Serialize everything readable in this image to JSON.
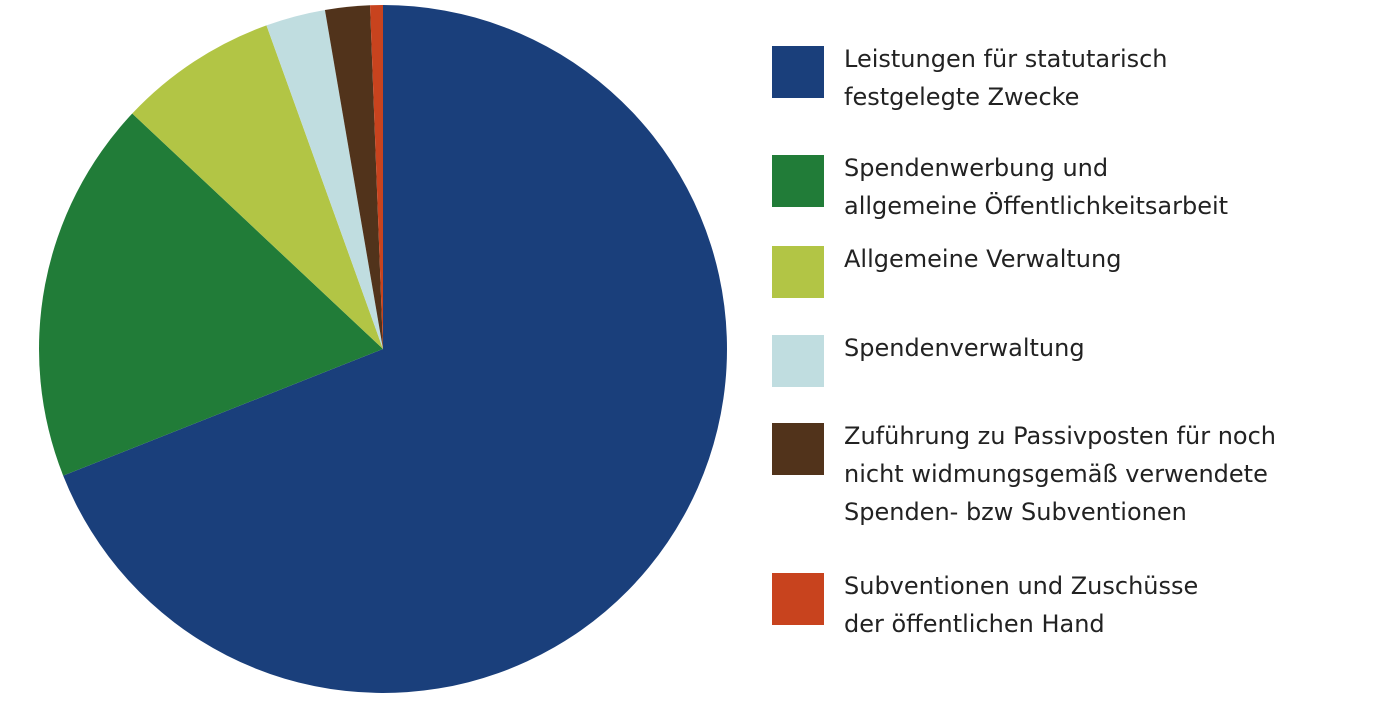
{
  "chart_data": {
    "type": "pie",
    "title": "",
    "start_angle": "12 o'clock",
    "direction": "clockwise",
    "legend_position": "right",
    "slices": [
      {
        "label": "Leistungen für statutarisch\nfestgelegte Zwecke",
        "value": 69.0,
        "color": "#1a3f7b"
      },
      {
        "label": "Spendenwerbung und\nallgemeine Öffentlichkeitsarbeit",
        "value": 18.0,
        "color": "#217c38"
      },
      {
        "label": "Allgemeine Verwaltung",
        "value": 7.5,
        "color": "#b2c545"
      },
      {
        "label": "Spendenverwaltung",
        "value": 2.8,
        "color": "#c0dde0"
      },
      {
        "label": "Zuführung zu Passivposten für noch\nnicht widmungsgemäß verwendete\nSpenden- bzw Subventionen",
        "value": 2.1,
        "color": "#51331b"
      },
      {
        "label": "Subventionen und Zuschüsse\nder öffentlichen Hand",
        "value": 0.6,
        "color": "#c8431e"
      }
    ]
  }
}
